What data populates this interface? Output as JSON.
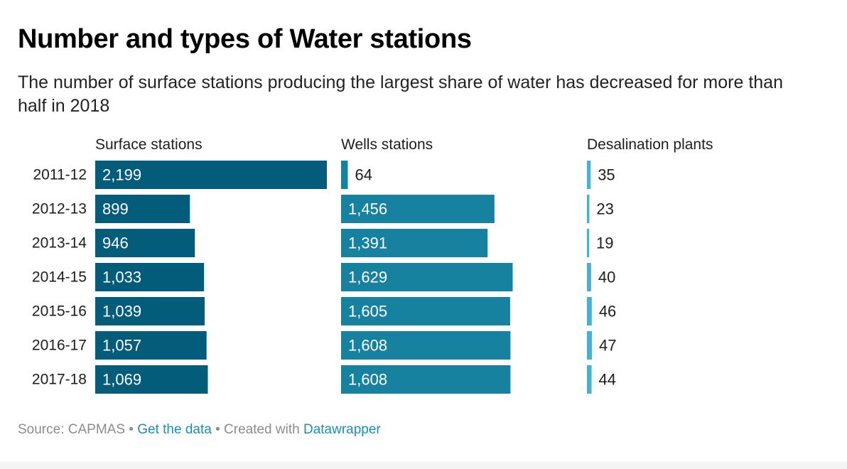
{
  "title": "Number and types of Water stations",
  "subtitle": "The number of surface stations producing the largest share of water has decreased for more than half in 2018",
  "footer": {
    "source": "Source: CAPMAS",
    "separator": " • ",
    "get_data": "Get the data",
    "created_with": "Created with ",
    "datawrapper": "Datawrapper"
  },
  "chart_data": {
    "type": "bar",
    "orientation": "horizontal",
    "categories": [
      "2011-12",
      "2012-13",
      "2013-14",
      "2014-15",
      "2015-16",
      "2016-17",
      "2017-18"
    ],
    "series": [
      {
        "name": "Surface stations",
        "values": [
          2199,
          899,
          946,
          1033,
          1039,
          1057,
          1069
        ],
        "labels": [
          "2,199",
          "899",
          "946",
          "1,033",
          "1,039",
          "1,057",
          "1,069"
        ],
        "color": "#035c7a"
      },
      {
        "name": "Wells stations",
        "values": [
          64,
          1456,
          1391,
          1629,
          1605,
          1608,
          1608
        ],
        "labels": [
          "64",
          "1,456",
          "1,391",
          "1,629",
          "1,605",
          "1,608",
          "1,608"
        ],
        "color": "#16829f"
      },
      {
        "name": "Desalination plants",
        "values": [
          35,
          23,
          19,
          40,
          46,
          47,
          44
        ],
        "labels": [
          "35",
          "23",
          "19",
          "40",
          "46",
          "47",
          "44"
        ],
        "color": "#4bafd0"
      }
    ],
    "shared_scale_max": 2199,
    "grid": false,
    "legend": "none (column headers)"
  }
}
